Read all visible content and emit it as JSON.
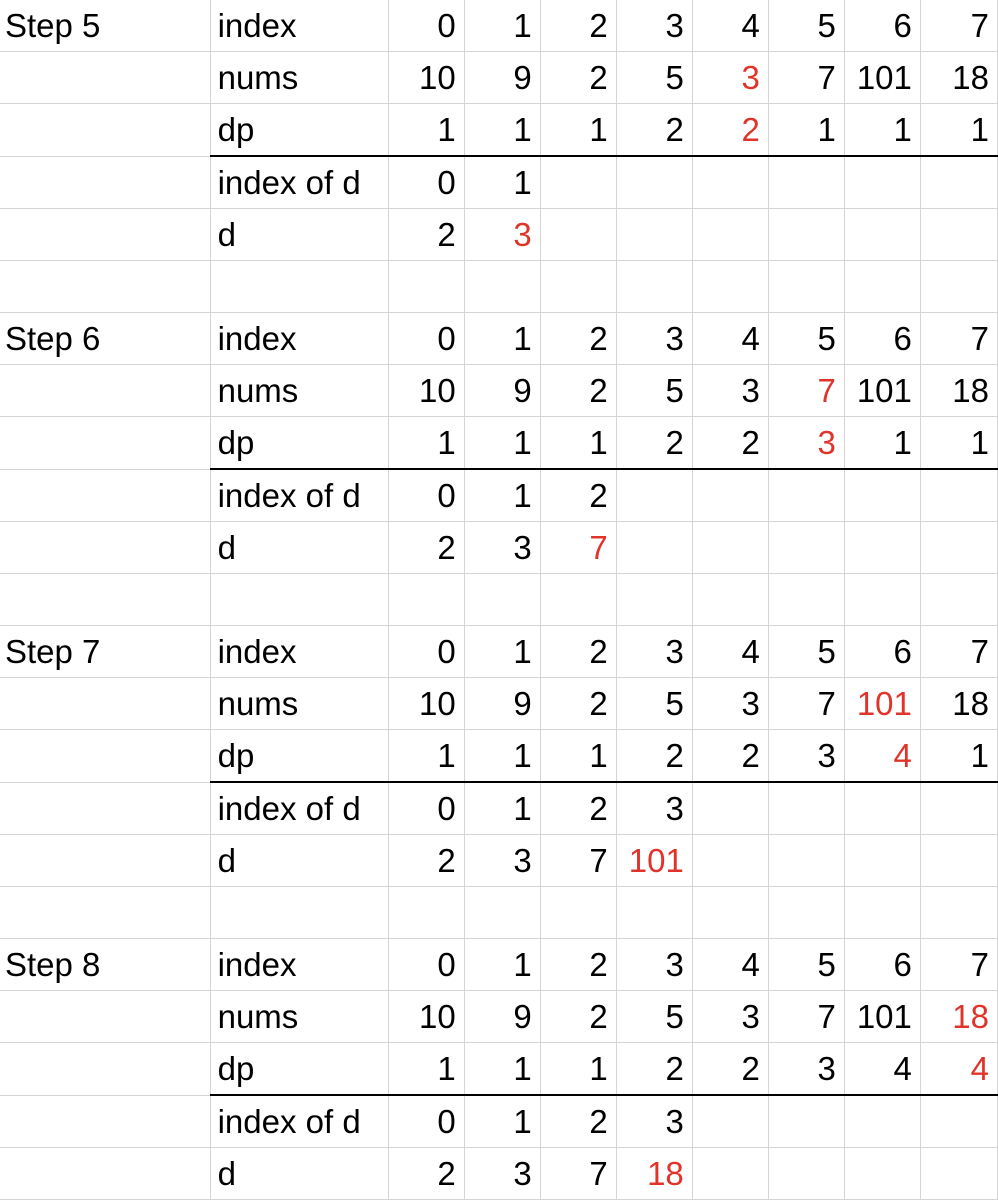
{
  "colors": {
    "highlight": "#e0342b",
    "grid": "#d4d4d4",
    "rule": "#000000"
  },
  "steps": [
    {
      "title": "Step 5",
      "rows": [
        {
          "label": "index",
          "cells": [
            "0",
            "1",
            "2",
            "3",
            "4",
            "5",
            "6",
            "7"
          ],
          "highlight": []
        },
        {
          "label": "nums",
          "cells": [
            "10",
            "9",
            "2",
            "5",
            "3",
            "7",
            "101",
            "18"
          ],
          "highlight": [
            4
          ]
        },
        {
          "label": "dp",
          "cells": [
            "1",
            "1",
            "1",
            "2",
            "2",
            "1",
            "1",
            "1"
          ],
          "highlight": [
            4
          ]
        },
        {
          "label": "index of d",
          "cells": [
            "0",
            "1",
            "",
            "",
            "",
            "",
            "",
            ""
          ],
          "highlight": []
        },
        {
          "label": "d",
          "cells": [
            "2",
            "3",
            "",
            "",
            "",
            "",
            "",
            ""
          ],
          "highlight": [
            1
          ]
        }
      ]
    },
    {
      "title": "Step 6",
      "rows": [
        {
          "label": "index",
          "cells": [
            "0",
            "1",
            "2",
            "3",
            "4",
            "5",
            "6",
            "7"
          ],
          "highlight": []
        },
        {
          "label": "nums",
          "cells": [
            "10",
            "9",
            "2",
            "5",
            "3",
            "7",
            "101",
            "18"
          ],
          "highlight": [
            5
          ]
        },
        {
          "label": "dp",
          "cells": [
            "1",
            "1",
            "1",
            "2",
            "2",
            "3",
            "1",
            "1"
          ],
          "highlight": [
            5
          ]
        },
        {
          "label": "index of d",
          "cells": [
            "0",
            "1",
            "2",
            "",
            "",
            "",
            "",
            ""
          ],
          "highlight": []
        },
        {
          "label": "d",
          "cells": [
            "2",
            "3",
            "7",
            "",
            "",
            "",
            "",
            ""
          ],
          "highlight": [
            2
          ]
        }
      ]
    },
    {
      "title": "Step 7",
      "rows": [
        {
          "label": "index",
          "cells": [
            "0",
            "1",
            "2",
            "3",
            "4",
            "5",
            "6",
            "7"
          ],
          "highlight": []
        },
        {
          "label": "nums",
          "cells": [
            "10",
            "9",
            "2",
            "5",
            "3",
            "7",
            "101",
            "18"
          ],
          "highlight": [
            6
          ]
        },
        {
          "label": "dp",
          "cells": [
            "1",
            "1",
            "1",
            "2",
            "2",
            "3",
            "4",
            "1"
          ],
          "highlight": [
            6
          ]
        },
        {
          "label": "index of d",
          "cells": [
            "0",
            "1",
            "2",
            "3",
            "",
            "",
            "",
            ""
          ],
          "highlight": []
        },
        {
          "label": "d",
          "cells": [
            "2",
            "3",
            "7",
            "101",
            "",
            "",
            "",
            ""
          ],
          "highlight": [
            3
          ]
        }
      ]
    },
    {
      "title": "Step 8",
      "rows": [
        {
          "label": "index",
          "cells": [
            "0",
            "1",
            "2",
            "3",
            "4",
            "5",
            "6",
            "7"
          ],
          "highlight": []
        },
        {
          "label": "nums",
          "cells": [
            "10",
            "9",
            "2",
            "5",
            "3",
            "7",
            "101",
            "18"
          ],
          "highlight": [
            7
          ]
        },
        {
          "label": "dp",
          "cells": [
            "1",
            "1",
            "1",
            "2",
            "2",
            "3",
            "4",
            "4"
          ],
          "highlight": [
            7
          ]
        },
        {
          "label": "index of d",
          "cells": [
            "0",
            "1",
            "2",
            "3",
            "",
            "",
            "",
            ""
          ],
          "highlight": []
        },
        {
          "label": "d",
          "cells": [
            "2",
            "3",
            "7",
            "18",
            "",
            "",
            "",
            ""
          ],
          "highlight": [
            3
          ]
        }
      ]
    }
  ]
}
